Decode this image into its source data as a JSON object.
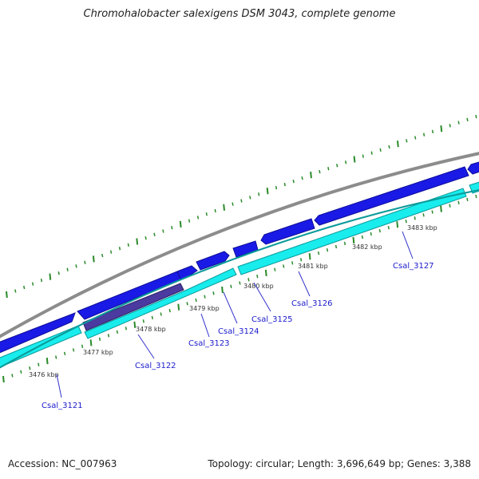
{
  "title": "Chromohalobacter salexigens DSM 3043, complete genome",
  "footer": {
    "accession": "Accession: NC_007963",
    "stats": "Topology: circular; Length: 3,696,649 bp; Genes: 3,388"
  },
  "kbp_labels": [
    "3476 kbp",
    "3477 kbp",
    "3478 kbp",
    "3479 kbp",
    "3480 kbp",
    "3481 kbp",
    "3482 kbp",
    "3483 kbp"
  ],
  "gene_labels": [
    "Csal_3121",
    "Csal_3122",
    "Csal_3123",
    "Csal_3124",
    "Csal_3125",
    "Csal_3126",
    "Csal_3127"
  ],
  "colors": {
    "backbone": "#8c8c8c",
    "forward_gene": "#1a1ae6",
    "reverse_gene": "#19ecec",
    "reverse_gene_dark": "#4b3aa0",
    "tick": "#2a8a2a",
    "label": "#1a1acc",
    "leader": "#3333cc"
  }
}
